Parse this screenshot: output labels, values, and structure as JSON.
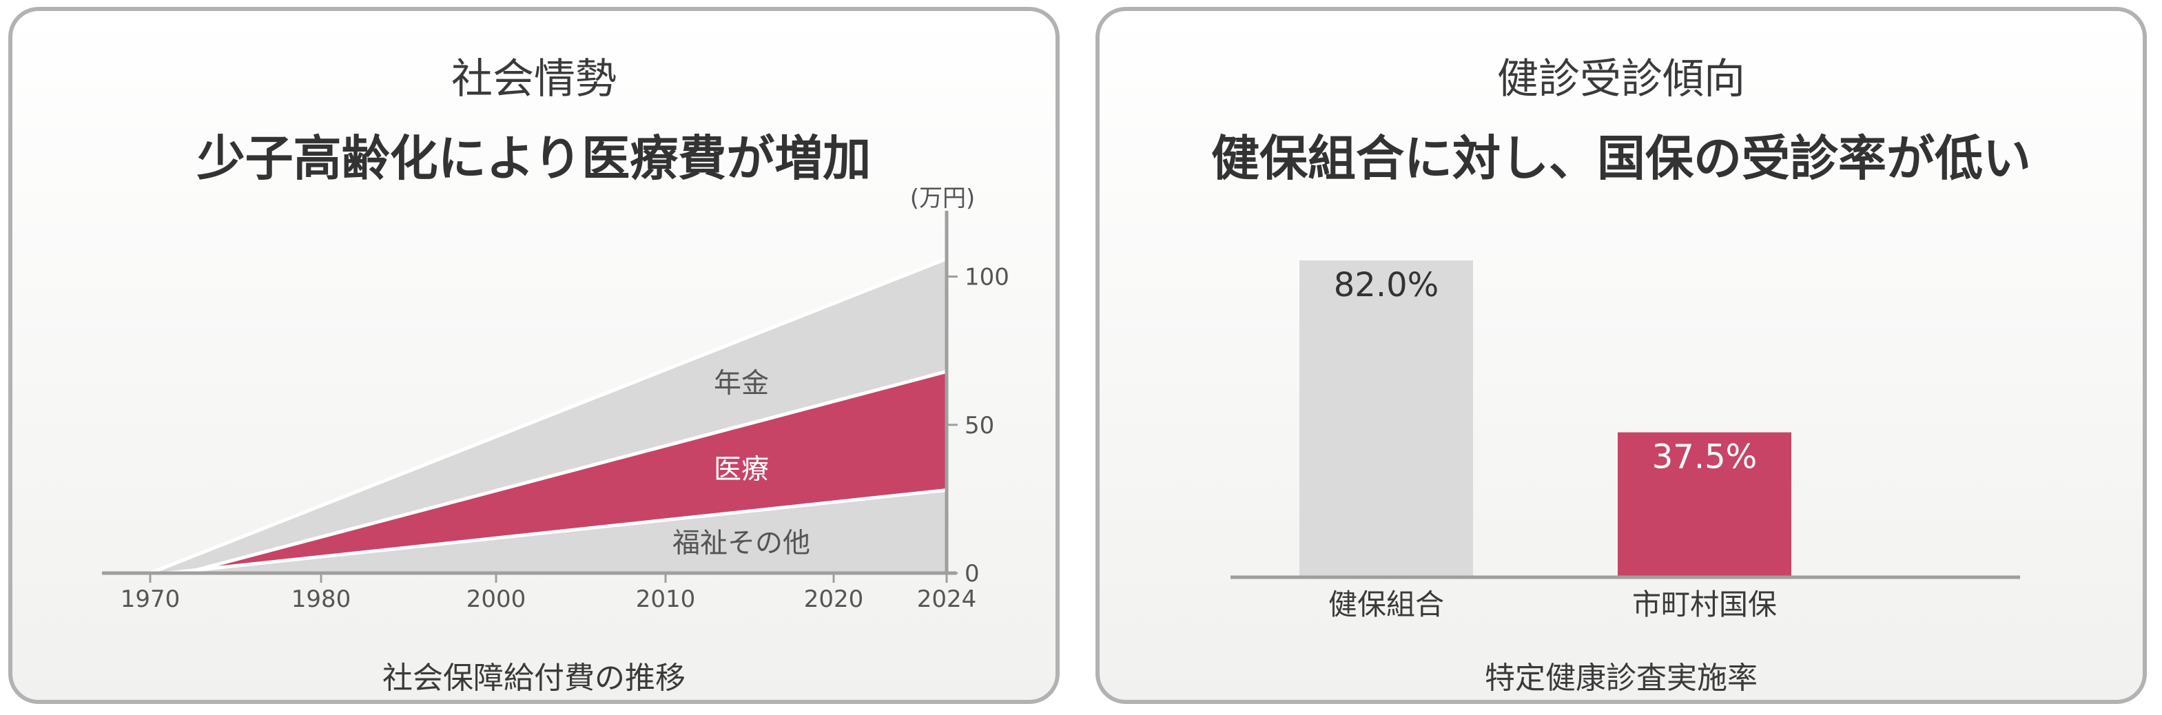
{
  "panels": [
    {
      "subtitle": "社会情勢",
      "title": "少子高齢化により医療費が増加",
      "caption": "社会保障給付費の推移"
    },
    {
      "subtitle": "健診受診傾向",
      "title": "健保組合に対し、国保の受診率が低い",
      "caption": "特定健康診査実施率"
    }
  ],
  "chart_data": [
    {
      "type": "area",
      "stacked": true,
      "unit_label": "(万円)",
      "x_ticks": [
        "1970",
        "1980",
        "2000",
        "2010",
        "2020",
        "2024"
      ],
      "y_ticks": [
        "0",
        "50",
        "100"
      ],
      "y_range": [
        0,
        105
      ],
      "series": [
        {
          "name": "福祉その他",
          "x": [
            1971,
            2024
          ],
          "y": [
            0,
            28
          ],
          "color": "#d9d9d9",
          "label_color": "#555555"
        },
        {
          "name": "医療",
          "x": [
            1972,
            2024
          ],
          "y": [
            0,
            40
          ],
          "color": "#c74466",
          "label_color": "#ffffff"
        },
        {
          "name": "年金",
          "x": [
            1970,
            2024
          ],
          "y": [
            0,
            38
          ],
          "color": "#d9d9d9",
          "label_color": "#555555"
        }
      ]
    },
    {
      "type": "bar",
      "categories": [
        "健保組合",
        "市町村国保"
      ],
      "values": [
        82.0,
        37.5
      ],
      "value_labels": [
        "82.0%",
        "37.5%"
      ],
      "colors": [
        "#dadada",
        "#c74466"
      ],
      "label_colors": [
        "#333333",
        "#ffffff"
      ],
      "y_range": [
        0,
        100
      ]
    }
  ]
}
